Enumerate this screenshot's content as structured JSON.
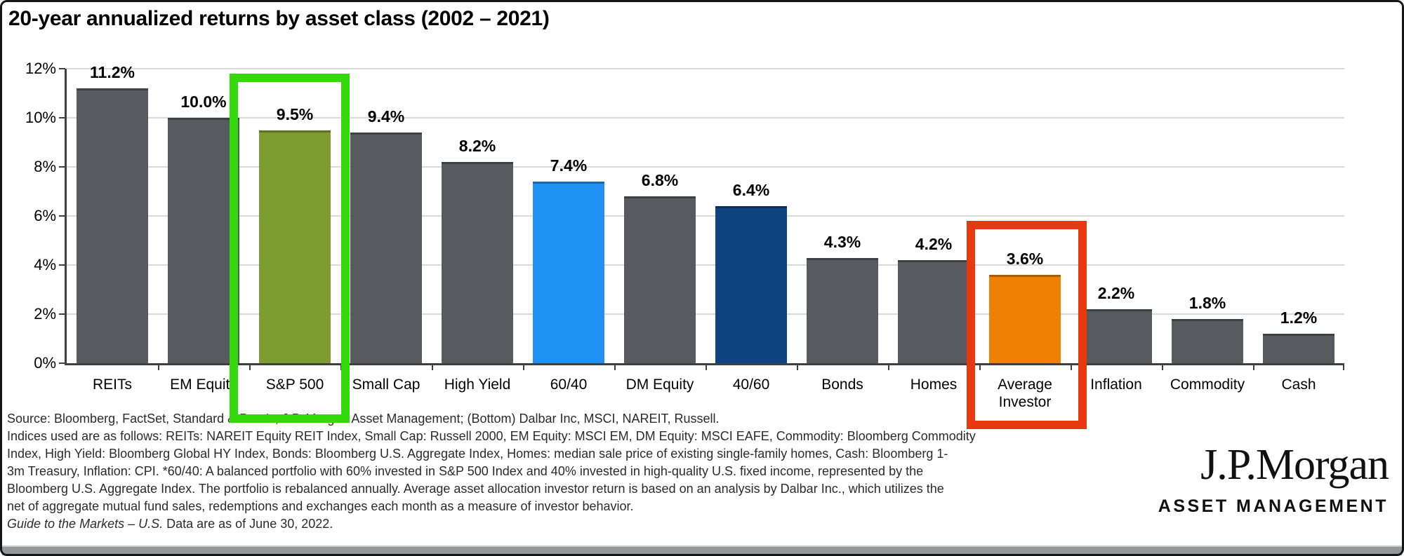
{
  "title": "20-year annualized returns by asset class (2002 – 2021)",
  "chart_data": {
    "type": "bar",
    "title": "20-year annualized returns by asset class (2002 – 2021)",
    "categories": [
      "REITs",
      "EM Equity",
      "S&P 500",
      "Small Cap",
      "High Yield",
      "60/40",
      "DM Equity",
      "40/60",
      "Bonds",
      "Homes",
      "Average Investor",
      "Inflation",
      "Commodity",
      "Cash"
    ],
    "values": [
      11.2,
      10.0,
      9.5,
      9.4,
      8.2,
      7.4,
      6.8,
      6.4,
      4.3,
      4.2,
      3.6,
      2.2,
      1.8,
      1.2
    ],
    "value_labels": [
      "11.2%",
      "10.0%",
      "9.5%",
      "9.4%",
      "8.2%",
      "7.4%",
      "6.8%",
      "6.4%",
      "4.3%",
      "4.2%",
      "3.6%",
      "2.2%",
      "1.8%",
      "1.2%"
    ],
    "bar_colors": [
      "#575a5e",
      "#575a5e",
      "#7e9d30",
      "#575a5e",
      "#575a5e",
      "#2090f2",
      "#575a5e",
      "#0e4283",
      "#575a5e",
      "#575a5e",
      "#ee8103",
      "#575a5e",
      "#575a5e",
      "#575a5e"
    ],
    "xlabel": "",
    "ylabel": "",
    "ylim": [
      0,
      12
    ],
    "yticks": [
      0,
      2,
      4,
      6,
      8,
      10,
      12
    ],
    "ytick_labels": [
      "0%",
      "2%",
      "4%",
      "6%",
      "8%",
      "10%",
      "12%"
    ],
    "grid": true,
    "legend": false,
    "highlights": [
      {
        "target": "S&P 500",
        "box_color": "#33d90b"
      },
      {
        "target": "Average Investor",
        "box_color": "#e8380f"
      }
    ]
  },
  "source": {
    "lines": [
      "Source: Bloomberg, FactSet, Standard & Poor's, J.P. Morgan Asset Management; (Bottom) Dalbar Inc, MSCI, NAREIT, Russell.",
      "Indices used are as follows: REITs: NAREIT Equity REIT Index, Small Cap: Russell 2000, EM Equity: MSCI EM, DM Equity: MSCI EAFE, Commodity: Bloomberg Commodity",
      "Index, High Yield: Bloomberg Global HY Index, Bonds: Bloomberg U.S. Aggregate Index, Homes: median sale price of existing single-family homes, Cash: Bloomberg 1-",
      "3m Treasury, Inflation: CPI. *60/40: A balanced portfolio with 60% invested in S&P 500 Index and 40% invested in high-quality U.S. fixed income, represented by the",
      "Bloomberg U.S. Aggregate Index. The portfolio is rebalanced annually. Average asset allocation investor return is based on an analysis by Dalbar Inc., which utilizes the",
      "net of aggregate mutual fund sales, redemptions and exchanges each month as a measure of investor behavior."
    ],
    "footnote_italic": "Guide to the Markets – U.S.",
    "footnote_rest": " Data are as of June 30, 2022."
  },
  "logo": {
    "brand": "J.P.Morgan",
    "division": "ASSET MANAGEMENT"
  },
  "colors": {
    "bar_default": "#575a5e",
    "bar_sp500_green": "#7e9d30",
    "bar_6040_blue": "#2090f2",
    "bar_4060_navy": "#0e4283",
    "bar_avg_investor_orange": "#ee8103",
    "highlight_green": "#33d90b",
    "highlight_red": "#e8380f",
    "gridline": "#dadada",
    "axis": "#3f3f3f",
    "text": "#000000"
  }
}
